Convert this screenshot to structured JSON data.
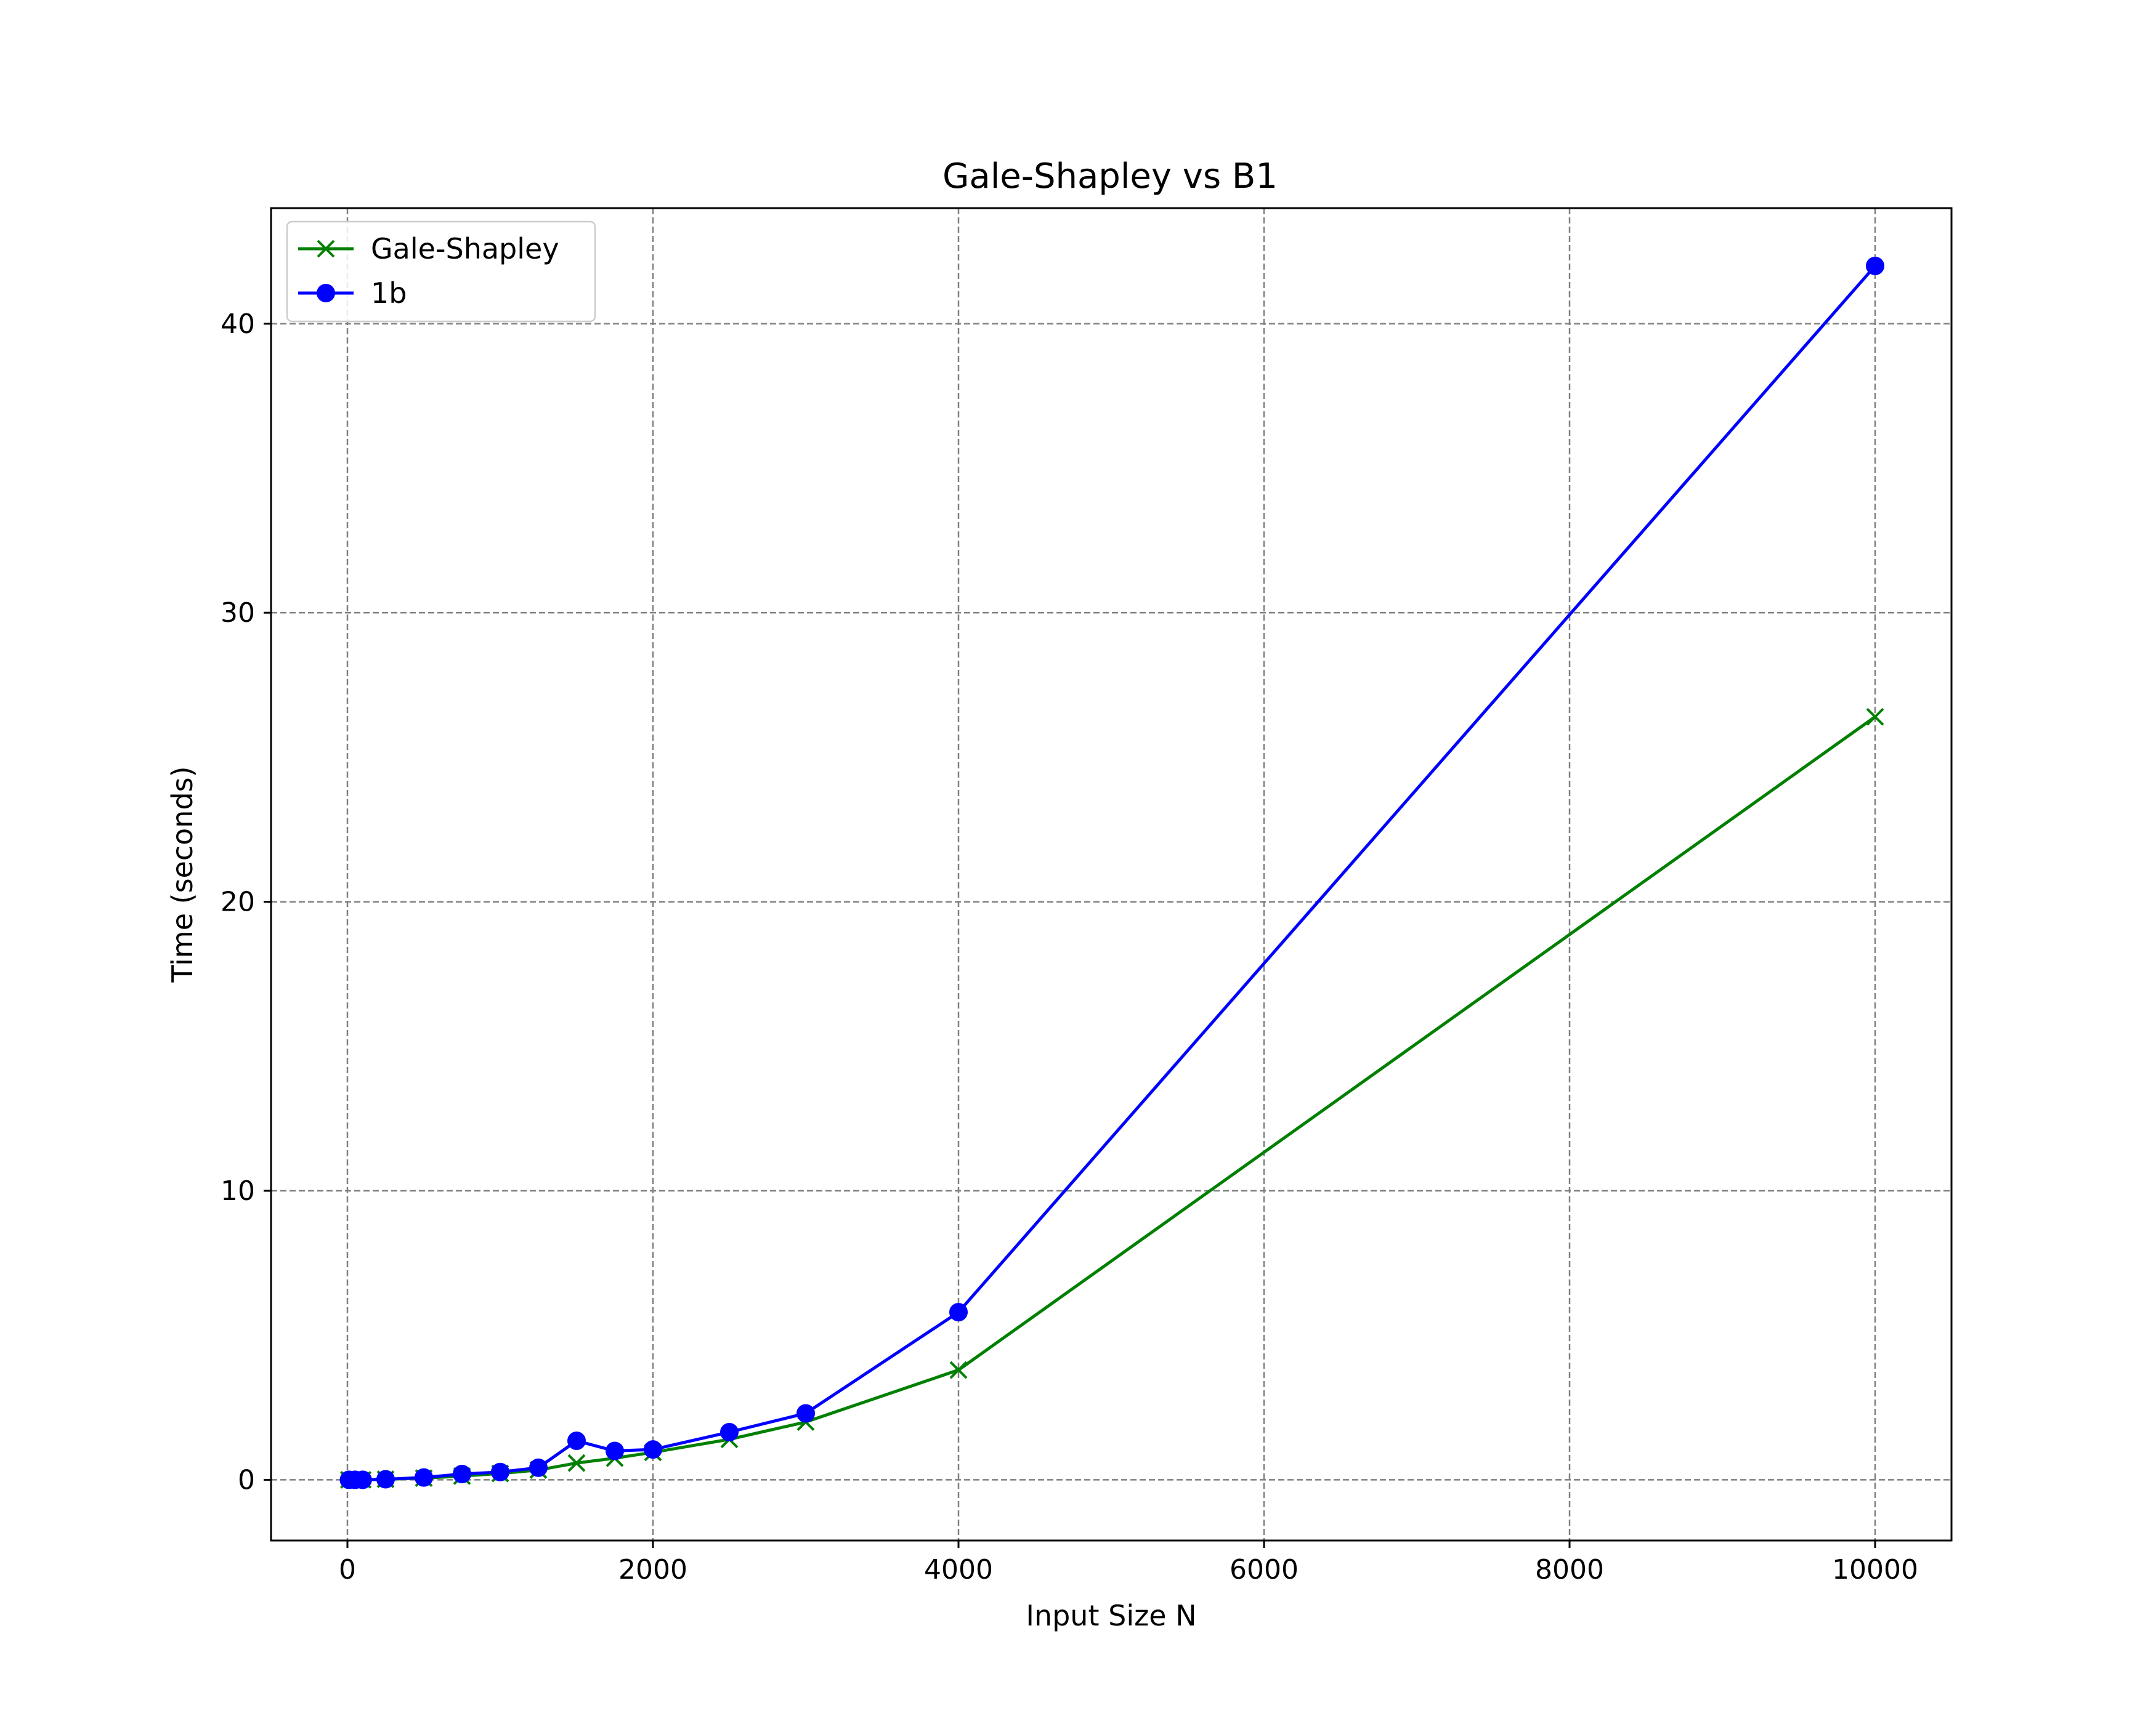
{
  "chart_data": {
    "type": "line",
    "title": "Gale-Shapley vs B1",
    "xlabel": "Input Size N",
    "ylabel": "Time (seconds)",
    "xlim": [
      -500,
      10500
    ],
    "ylim": [
      -2.1,
      44.0
    ],
    "xticks": [
      0,
      2000,
      4000,
      6000,
      8000,
      10000
    ],
    "yticks": [
      0,
      10,
      20,
      30,
      40
    ],
    "grid": true,
    "legend_position": "top-left",
    "series": [
      {
        "name": "Gale-Shapley",
        "color": "#008000",
        "marker": "x",
        "x": [
          10,
          50,
          100,
          250,
          500,
          750,
          1000,
          1250,
          1500,
          1750,
          2000,
          2500,
          3000,
          4000,
          10000
        ],
        "y": [
          0.0,
          0.0,
          0.0,
          0.02,
          0.06,
          0.13,
          0.22,
          0.34,
          0.58,
          0.75,
          0.95,
          1.4,
          2.0,
          3.8,
          26.4
        ]
      },
      {
        "name": "1b",
        "color": "#0000ff",
        "marker": "o",
        "x": [
          10,
          50,
          100,
          250,
          500,
          750,
          1000,
          1250,
          1500,
          1750,
          2000,
          2500,
          3000,
          4000,
          10000
        ],
        "y": [
          0.0,
          0.0,
          0.0,
          0.02,
          0.08,
          0.2,
          0.27,
          0.42,
          1.35,
          1.0,
          1.05,
          1.65,
          2.3,
          5.8,
          42.0
        ]
      }
    ]
  }
}
